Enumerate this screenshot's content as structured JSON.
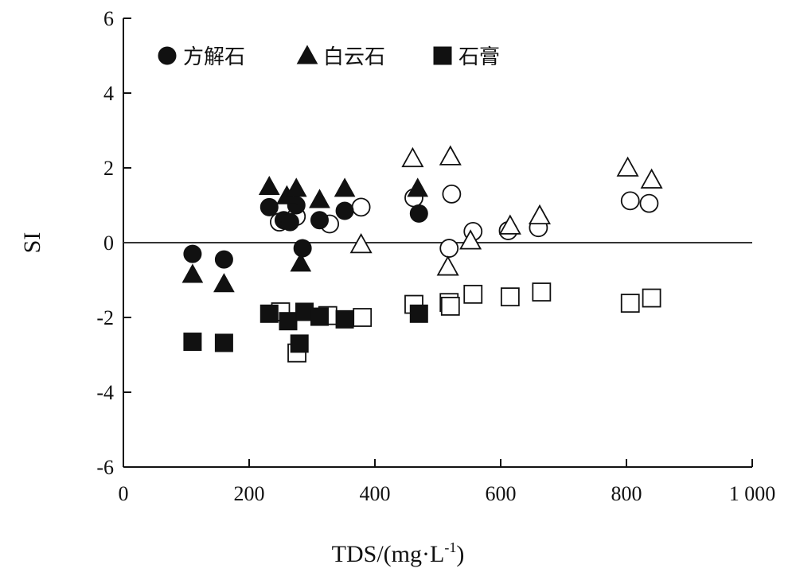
{
  "chart_data": {
    "type": "scatter",
    "title": "",
    "xlabel": "TDS/(mg·L",
    "xlabel_sup": "-1",
    "xlabel_close": ")",
    "ylabel": "SI",
    "xlim": [
      0,
      1000
    ],
    "ylim": [
      -6,
      6
    ],
    "x_ticks": [
      0,
      200,
      400,
      600,
      800,
      1000
    ],
    "x_tick_labels": [
      "0",
      "200",
      "400",
      "600",
      "800",
      "1 000"
    ],
    "y_ticks": [
      -6,
      -4,
      -2,
      0,
      2,
      4,
      6
    ],
    "y_tick_labels": [
      "-6",
      "-4",
      "-2",
      "0",
      "2",
      "4",
      "6"
    ],
    "reference_line_y": 0,
    "grid": false,
    "legend_position": "top-left",
    "series": [
      {
        "name": "方解石",
        "marker": "circle",
        "filled_points": [
          [
            110,
            -0.3
          ],
          [
            160,
            -0.45
          ],
          [
            232,
            0.95
          ],
          [
            255,
            0.6
          ],
          [
            265,
            0.55
          ],
          [
            275,
            1.0
          ],
          [
            285,
            -0.15
          ],
          [
            312,
            0.6
          ],
          [
            352,
            0.85
          ],
          [
            470,
            0.78
          ]
        ],
        "open_points": [
          [
            248,
            0.55
          ],
          [
            275,
            0.7
          ],
          [
            328,
            0.5
          ],
          [
            378,
            0.95
          ],
          [
            462,
            1.2
          ],
          [
            518,
            -0.15
          ],
          [
            522,
            1.3
          ],
          [
            556,
            0.3
          ],
          [
            612,
            0.32
          ],
          [
            660,
            0.4
          ],
          [
            806,
            1.12
          ],
          [
            836,
            1.05
          ]
        ]
      },
      {
        "name": "白云石",
        "marker": "triangle",
        "filled_points": [
          [
            110,
            -0.85
          ],
          [
            160,
            -1.1
          ],
          [
            232,
            1.5
          ],
          [
            260,
            1.25
          ],
          [
            275,
            1.45
          ],
          [
            282,
            -0.55
          ],
          [
            312,
            1.15
          ],
          [
            352,
            1.45
          ],
          [
            468,
            1.45
          ]
        ],
        "open_points": [
          [
            378,
            -0.05
          ],
          [
            460,
            2.25
          ],
          [
            520,
            2.3
          ],
          [
            516,
            -0.65
          ],
          [
            552,
            0.05
          ],
          [
            615,
            0.45
          ],
          [
            662,
            0.72
          ],
          [
            802,
            2.0
          ],
          [
            840,
            1.68
          ]
        ]
      },
      {
        "name": "石膏",
        "marker": "square",
        "filled_points": [
          [
            110,
            -2.65
          ],
          [
            160,
            -2.68
          ],
          [
            232,
            -1.9
          ],
          [
            262,
            -2.1
          ],
          [
            280,
            -2.7
          ],
          [
            288,
            -1.85
          ],
          [
            312,
            -1.98
          ],
          [
            352,
            -2.05
          ],
          [
            470,
            -1.9
          ]
        ],
        "open_points": [
          [
            250,
            -1.85
          ],
          [
            276,
            -2.95
          ],
          [
            325,
            -1.95
          ],
          [
            380,
            -2.0
          ],
          [
            462,
            -1.65
          ],
          [
            518,
            -1.6
          ],
          [
            520,
            -1.7
          ],
          [
            556,
            -1.38
          ],
          [
            615,
            -1.45
          ],
          [
            665,
            -1.32
          ],
          [
            806,
            -1.62
          ],
          [
            840,
            -1.48
          ]
        ]
      }
    ]
  }
}
